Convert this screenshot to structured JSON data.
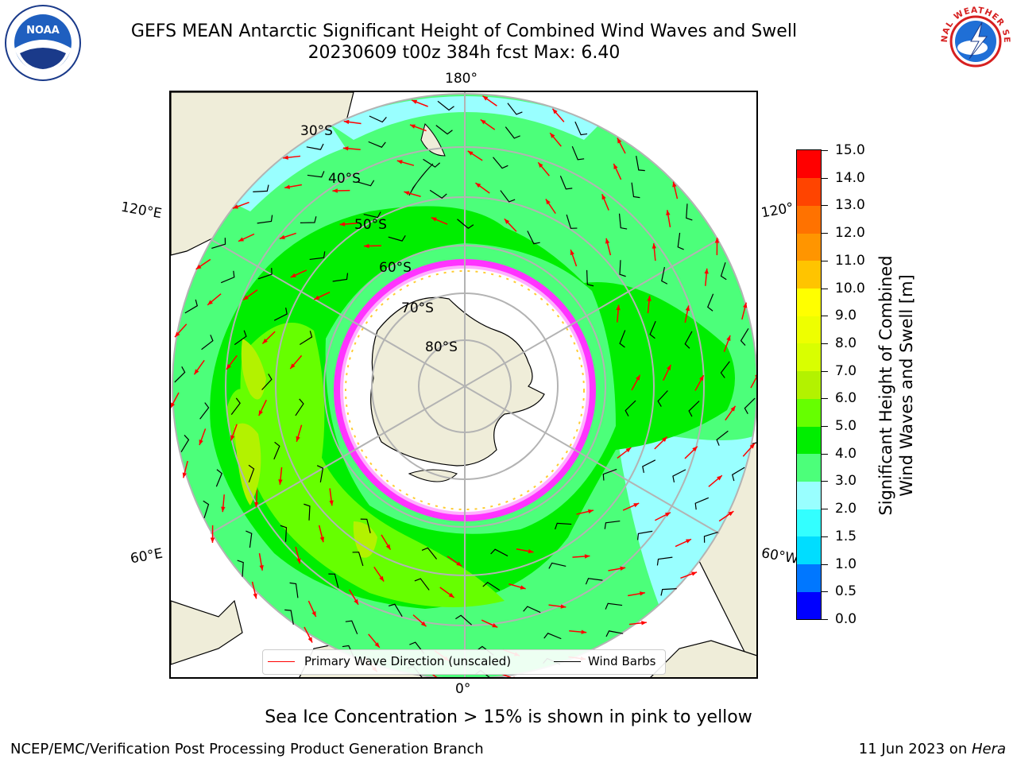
{
  "header": {
    "title_line1": "GEFS MEAN Antarctic Significant Height of Combined Wind Waves and Swell",
    "title_line2": "20230609 t00z 384h fcst   Max: 6.40"
  },
  "logos": {
    "left": "NOAA",
    "right": "NATIONAL WEATHER SERVICE"
  },
  "map": {
    "projection": "south-polar-stereographic",
    "lon_labels": {
      "top": "180°",
      "bottom": "0°",
      "upper_left": "120°E",
      "upper_right": "120°",
      "lower_left": "60°E",
      "lower_right": "60°W"
    },
    "lat_labels": [
      "30°S",
      "40°S",
      "50°S",
      "60°S",
      "70°S",
      "80°S"
    ],
    "colors": {
      "land": "#efedd9",
      "ice_free_ocean": "#ffffff",
      "sea_ice_edge": [
        "#ff33ff",
        "#ffb0ff",
        "#ffcc33"
      ],
      "wave_arrow": "#ff0000",
      "wind_barb": "#000000",
      "graticule": "#b3b3b3"
    }
  },
  "colorbar": {
    "label_line1": "Significant Height of Combined",
    "label_line2": "Wind Waves and Swell [m]",
    "ticks": [
      "0.0",
      "0.5",
      "1.0",
      "1.5",
      "2.0",
      "3.0",
      "4.0",
      "5.0",
      "6.0",
      "7.0",
      "8.0",
      "9.0",
      "10.0",
      "11.0",
      "12.0",
      "13.0",
      "14.0",
      "15.0"
    ],
    "colors": [
      "#0000ff",
      "#0077ff",
      "#00ddff",
      "#33ffff",
      "#99ffff",
      "#4cff7a",
      "#00ee00",
      "#66ff00",
      "#b3f200",
      "#d9ff00",
      "#eeff00",
      "#ffff00",
      "#ffc400",
      "#ff9500",
      "#ff7200",
      "#ff4400",
      "#ff0000"
    ]
  },
  "legend": {
    "wave_label": "Primary Wave Direction (unscaled)",
    "wind_label": "Wind Barbs",
    "wave_color": "#ff0000",
    "wind_color": "#000000"
  },
  "footer": {
    "note": "Sea Ice Concentration > 15% is shown in pink to yellow",
    "left": "NCEP/EMC/Verification Post Processing Product Generation Branch",
    "right_prefix": "11 Jun 2023 on ",
    "right_machine": "Hera"
  }
}
